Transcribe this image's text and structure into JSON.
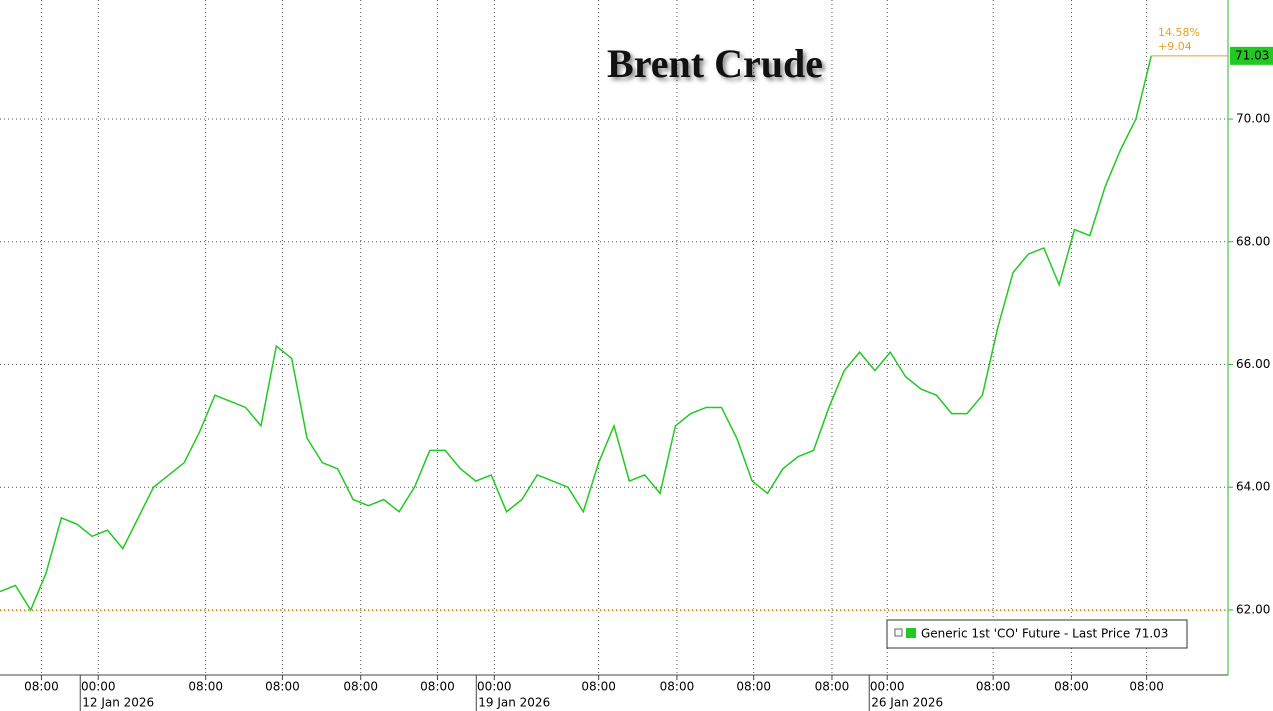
{
  "chart_data": {
    "type": "line",
    "title": "Brent Crude",
    "xlim": [
      0,
      80
    ],
    "xticks": [
      {
        "value": 2.7,
        "label": "08:00"
      },
      {
        "value": 6.4,
        "label": "00:00"
      },
      {
        "value": 13.4,
        "label": "08:00"
      },
      {
        "value": 18.4,
        "label": "08:00"
      },
      {
        "value": 23.5,
        "label": "08:00"
      },
      {
        "value": 28.5,
        "label": "08:00"
      },
      {
        "value": 32.2,
        "label": "00:00"
      },
      {
        "value": 39.0,
        "label": "08:00"
      },
      {
        "value": 44.1,
        "label": "08:00"
      },
      {
        "value": 49.1,
        "label": "08:00"
      },
      {
        "value": 54.2,
        "label": "08:00"
      },
      {
        "value": 57.8,
        "label": "00:00"
      },
      {
        "value": 64.7,
        "label": "08:00"
      },
      {
        "value": 69.8,
        "label": "08:00"
      },
      {
        "value": 74.7,
        "label": "08:00"
      }
    ],
    "date_labels": [
      {
        "value": 6.4,
        "label": "12 Jan 2026"
      },
      {
        "value": 32.2,
        "label": "19 Jan 2026"
      },
      {
        "value": 57.8,
        "label": "26 Jan 2026"
      }
    ],
    "ylim": [
      60.94,
      71.94
    ],
    "yticks": [
      {
        "value": 62,
        "label": "62.00"
      },
      {
        "value": 64,
        "label": "64.00"
      },
      {
        "value": 66,
        "label": "66.00"
      },
      {
        "value": 68,
        "label": "68.00"
      },
      {
        "value": 70,
        "label": "70.00"
      }
    ],
    "grid": true,
    "reference_line": 61.99,
    "annotations": [
      "14.58%",
      "+9.04"
    ],
    "x": [
      0,
      1,
      2,
      3,
      4,
      5,
      6,
      7,
      8,
      9,
      10,
      11,
      12,
      13,
      14,
      15,
      16,
      17,
      18,
      19,
      20,
      21,
      22,
      23,
      24,
      25,
      26,
      27,
      28,
      29,
      30,
      31,
      32,
      33,
      34,
      35,
      36,
      37,
      38,
      39,
      40,
      41,
      42,
      43,
      44,
      45,
      46,
      47,
      48,
      49,
      50,
      51,
      52,
      53,
      54,
      55,
      56,
      57,
      58,
      59,
      60,
      61,
      62,
      63,
      64,
      65,
      66,
      67,
      68,
      69,
      70,
      71,
      72,
      73,
      74,
      75
    ],
    "series": [
      {
        "name": "Generic 1st 'CO' Future - Last Price 71.03",
        "color": "#22c922",
        "values": [
          62.3,
          62.4,
          62.0,
          62.6,
          63.5,
          63.4,
          63.2,
          63.3,
          63.0,
          63.5,
          64.0,
          64.2,
          64.4,
          64.9,
          65.5,
          65.4,
          65.3,
          65.0,
          66.3,
          66.1,
          64.8,
          64.4,
          64.3,
          63.8,
          63.7,
          63.8,
          63.6,
          64.0,
          64.6,
          64.6,
          64.3,
          64.1,
          64.2,
          63.6,
          63.8,
          64.2,
          64.1,
          64.0,
          63.6,
          64.4,
          65.0,
          64.1,
          64.2,
          63.9,
          65.0,
          65.2,
          65.3,
          65.3,
          64.8,
          64.1,
          63.9,
          64.3,
          64.5,
          64.6,
          65.3,
          65.9,
          66.2,
          65.9,
          66.2,
          65.8,
          65.6,
          65.5,
          65.2,
          65.2,
          65.5,
          66.6,
          67.5,
          67.8,
          67.9,
          67.3,
          68.2,
          68.1,
          68.9,
          69.5,
          70.0,
          71.03
        ]
      }
    ]
  }
}
